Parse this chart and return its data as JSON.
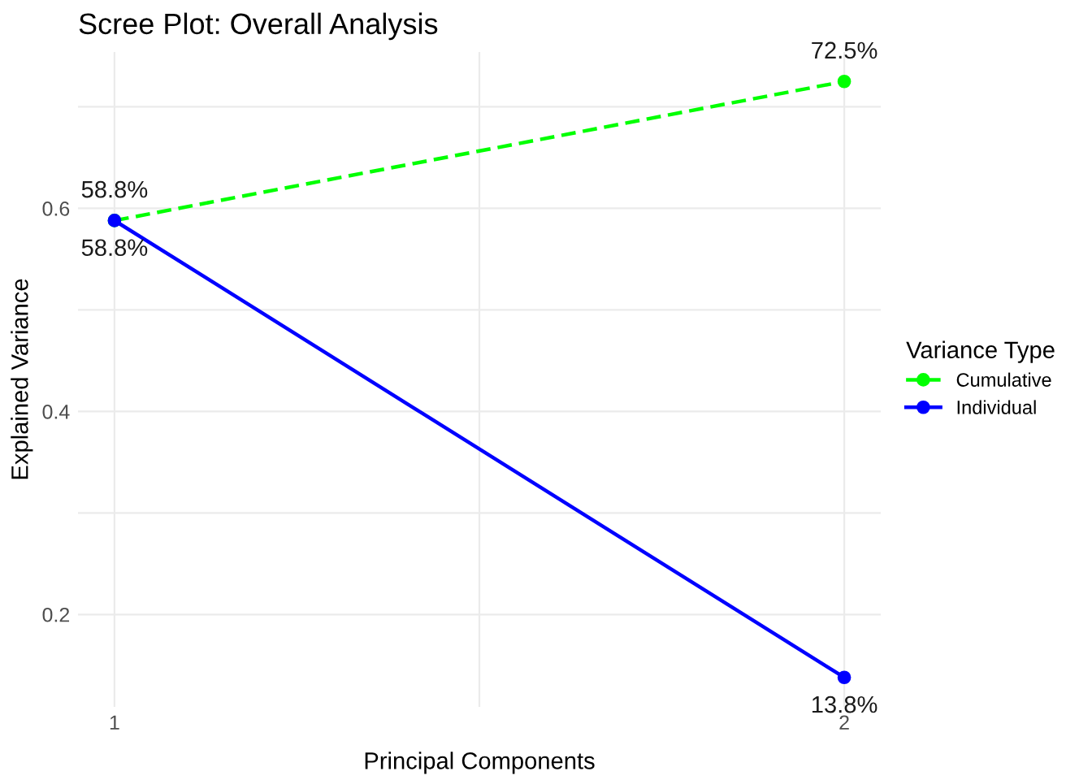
{
  "chart_data": {
    "type": "line",
    "title": "Scree Plot: Overall Analysis",
    "xlabel": "Principal Components",
    "ylabel": "Explained Variance",
    "legend_title": "Variance Type",
    "x": [
      1,
      2
    ],
    "series": [
      {
        "name": "Cumulative",
        "color": "#00ff00",
        "values": [
          0.588,
          0.725
        ],
        "value_labels": [
          "58.8%",
          "72.5%"
        ],
        "line_style": "dashed"
      },
      {
        "name": "Individual",
        "color": "#0000ff",
        "values": [
          0.588,
          0.138
        ],
        "value_labels": [
          "58.8%",
          "13.8%"
        ],
        "line_style": "solid"
      }
    ],
    "xlim": [
      0.95,
      2.05
    ],
    "xticks": [
      1,
      {
        "value": 1.5,
        "label": null
      },
      2
    ],
    "ylim": [
      0.109,
      0.754
    ],
    "yticks": [
      0.2,
      {
        "value": 0.3,
        "label": null
      },
      0.4,
      {
        "value": 0.5,
        "label": null
      },
      0.6,
      {
        "value": 0.7,
        "label": null
      }
    ],
    "grid": true,
    "legend": "right",
    "marker": "circle"
  }
}
